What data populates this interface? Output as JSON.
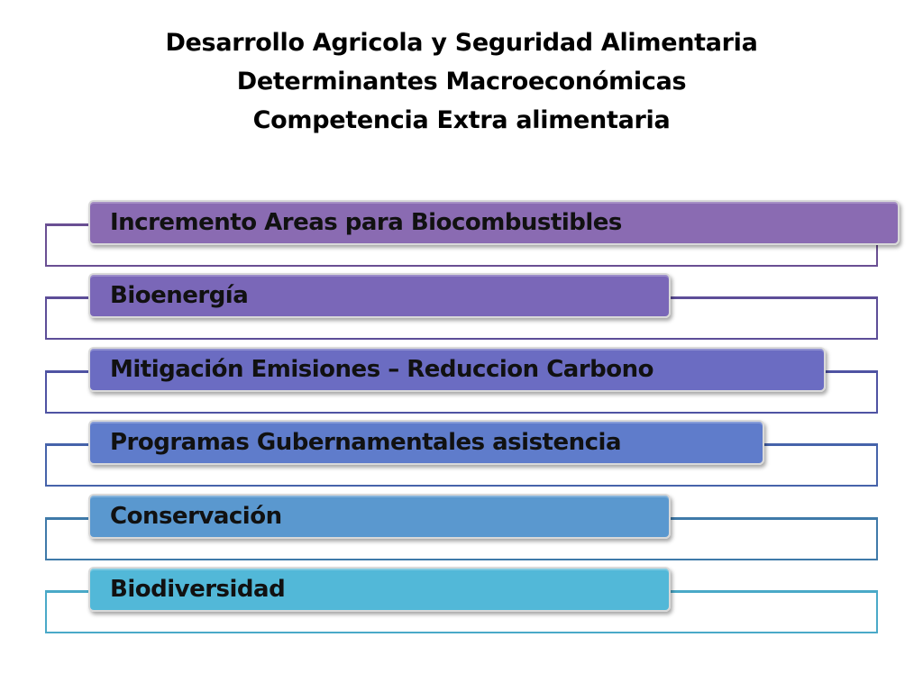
{
  "title": {
    "line1": "Desarrollo Agricola y Seguridad Alimentaria",
    "line2": "Determinantes Macroeconómicas",
    "line3": "Competencia Extra alimentaria"
  },
  "items": [
    {
      "label": "Incremento Areas para Biocombustibles",
      "color": "#8a6bb2",
      "outline": "#6a4f93"
    },
    {
      "label": "Bioenergía",
      "color": "#7a67b8",
      "outline": "#5d4e98"
    },
    {
      "label": "Mitigación Emisiones – Reduccion Carbono",
      "color": "#6b6cc2",
      "outline": "#4f53a3"
    },
    {
      "label": "Programas Gubernamentales asistencia",
      "color": "#5f7ccb",
      "outline": "#4663aa"
    },
    {
      "label": "Conservación",
      "color": "#5a98cf",
      "outline": "#3f7aa9"
    },
    {
      "label": "Biodiversidad",
      "color": "#52b8d8",
      "outline": "#4aa9c8"
    }
  ]
}
